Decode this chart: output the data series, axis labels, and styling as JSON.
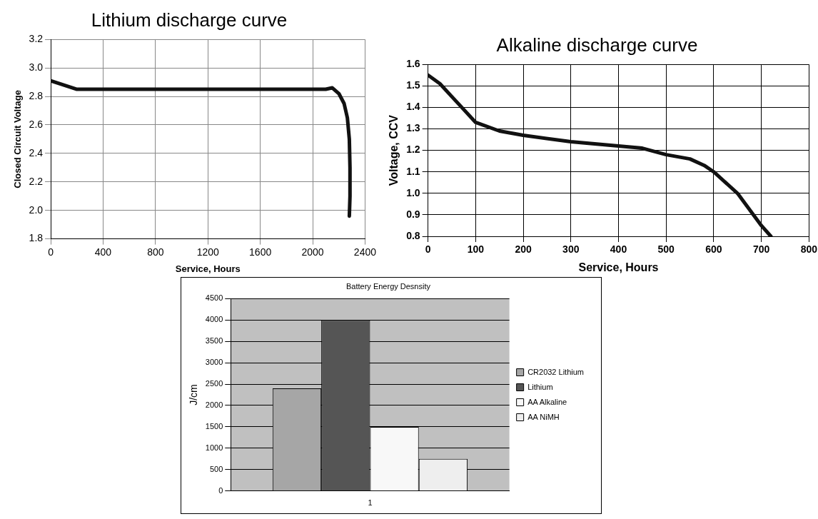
{
  "chart_data": [
    {
      "type": "line",
      "title": "Lithium discharge curve",
      "xlabel": "Service, Hours",
      "ylabel": "Closed Circuit Voltage",
      "xlim": [
        0,
        2400
      ],
      "xticks": [
        0,
        400,
        800,
        1200,
        1600,
        2000,
        2400
      ],
      "ylim": [
        1.8,
        3.2
      ],
      "yticks": [
        1.8,
        {
          "value": 2.0,
          "label": "2.0"
        },
        2.2,
        2.4,
        2.6,
        2.8,
        {
          "value": 3.0,
          "label": "3.0"
        },
        3.2
      ],
      "grid": true,
      "legend": false,
      "marker": "none",
      "series": [
        {
          "color": "#111111",
          "x": [
            0,
            100,
            200,
            600,
            1000,
            1600,
            2100,
            2150,
            2200,
            2240,
            2265,
            2280,
            2285,
            2285,
            2280
          ],
          "values": [
            2.91,
            2.88,
            2.85,
            2.85,
            2.85,
            2.85,
            2.85,
            2.86,
            2.82,
            2.75,
            2.65,
            2.5,
            2.3,
            2.1,
            1.96
          ]
        }
      ]
    },
    {
      "type": "line",
      "title": "Alkaline discharge curve",
      "xlabel": "Service, Hours",
      "ylabel": "Voltage, CCV",
      "xlim": [
        0,
        800
      ],
      "xticks": [
        0,
        100,
        200,
        300,
        400,
        500,
        600,
        700,
        800
      ],
      "ylim": [
        0.8,
        1.6
      ],
      "yticks": [
        {
          "value": 0.8,
          "label": "0.8"
        },
        {
          "value": 0.9,
          "label": "0.9"
        },
        {
          "value": 1.0,
          "label": "1.0"
        },
        {
          "value": 1.1,
          "label": "1.1"
        },
        {
          "value": 1.2,
          "label": "1.2"
        },
        {
          "value": 1.3,
          "label": "1.3"
        },
        {
          "value": 1.4,
          "label": "1.4"
        },
        {
          "value": 1.5,
          "label": "1.5"
        },
        {
          "value": 1.6,
          "label": "1.6"
        }
      ],
      "grid": true,
      "legend": false,
      "marker": "none",
      "series": [
        {
          "color": "#111111",
          "x": [
            0,
            25,
            50,
            75,
            100,
            150,
            200,
            300,
            400,
            450,
            500,
            550,
            580,
            600,
            650,
            700,
            720
          ],
          "values": [
            1.55,
            1.51,
            1.45,
            1.39,
            1.33,
            1.29,
            1.27,
            1.24,
            1.22,
            1.21,
            1.18,
            1.16,
            1.13,
            1.1,
            1.0,
            0.85,
            0.8
          ]
        }
      ]
    },
    {
      "type": "bar",
      "title": "Battery Energy Desnsity",
      "ylabel": "J/cm",
      "categories": [
        "1"
      ],
      "ylim": [
        0,
        4500
      ],
      "yticks": [
        0,
        500,
        1000,
        1500,
        2000,
        2500,
        3000,
        3500,
        4000,
        4500
      ],
      "grid": "y",
      "legend": "right",
      "series": [
        {
          "name": "CR2032 Lithium",
          "color": "#a6a6a6",
          "values": [
            2400
          ]
        },
        {
          "name": "Lithium",
          "color": "#555555",
          "values": [
            4000
          ]
        },
        {
          "name": "AA Alkaline",
          "color": "#f8f8f8",
          "values": [
            1500
          ]
        },
        {
          "name": "AA NiMH",
          "color": "#eeeeee",
          "values": [
            750
          ]
        }
      ]
    }
  ]
}
